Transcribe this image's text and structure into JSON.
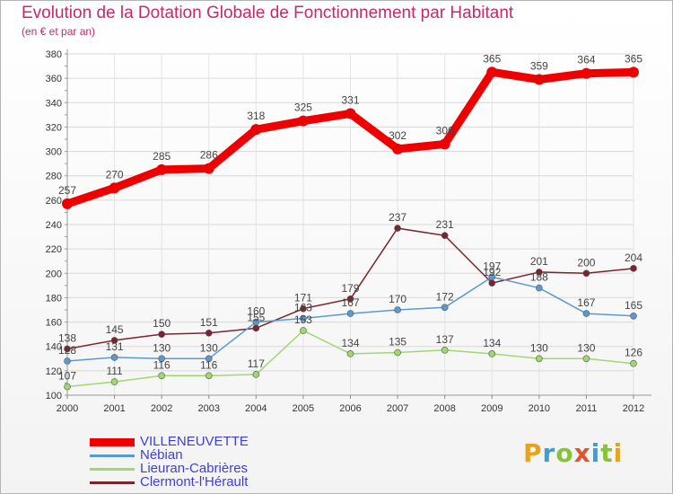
{
  "title": "Evolution de la Dotation Globale de Fonctionnement par Habitant",
  "subtitle": "(en € et par an)",
  "logo": {
    "letters": [
      "P",
      "r",
      "o",
      "x",
      "i",
      "t",
      "i"
    ],
    "colors": [
      "#e8a21c",
      "#3aa0d8",
      "#86c23a",
      "#e0542e",
      "#3aa0d8",
      "#86c23a",
      "#e8a21c"
    ]
  },
  "chart_data": {
    "type": "line",
    "title": "Evolution de la Dotation Globale de Fonctionnement par Habitant",
    "subtitle": "(en € et par an)",
    "xlabel": "",
    "ylabel": "",
    "x": [
      "2000",
      "2001",
      "2002",
      "2003",
      "2004",
      "2005",
      "2006",
      "2007",
      "2008",
      "2009",
      "2010",
      "2011",
      "2012"
    ],
    "ylim": [
      100,
      380
    ],
    "yticks": [
      100,
      120,
      140,
      160,
      180,
      200,
      220,
      240,
      260,
      280,
      300,
      320,
      340,
      360,
      380
    ],
    "grid": true,
    "legend_position": "bottom-left",
    "series": [
      {
        "name": "VILLENEUVETTE",
        "color": "#ee0000",
        "values": [
          257,
          270,
          285,
          286,
          318,
          325,
          331,
          302,
          306,
          365,
          359,
          364,
          365
        ],
        "labels": [
          "257",
          "270",
          "285",
          "286",
          "318",
          "325",
          "331",
          "302",
          "306",
          "365",
          "359",
          "364",
          "365"
        ]
      },
      {
        "name": "Nébian",
        "color": "#5a9ad0",
        "values": [
          128,
          131,
          130,
          130,
          160,
          163,
          167,
          170,
          172,
          197,
          188,
          167,
          165
        ],
        "labels": [
          "128",
          "131",
          "130",
          "130",
          "160",
          "163",
          "167",
          "170",
          "172",
          "197",
          "188",
          "167",
          "165"
        ]
      },
      {
        "name": "Lieuran-Cabrières",
        "color": "#9fd870",
        "values": [
          107,
          111,
          116,
          116,
          117,
          153,
          134,
          135,
          137,
          134,
          130,
          130,
          126
        ],
        "labels": [
          "107",
          "111",
          "116",
          "116",
          "117",
          "153",
          "134",
          "135",
          "137",
          "134",
          "130",
          "130",
          "126"
        ]
      },
      {
        "name": "Clermont-l'Hérault",
        "color": "#7b2430",
        "values": [
          138,
          145,
          150,
          151,
          155,
          171,
          179,
          237,
          231,
          192,
          201,
          200,
          204
        ],
        "labels": [
          "138",
          "145",
          "150",
          "151",
          "155",
          "171",
          "179",
          "237",
          "231",
          "192",
          "201",
          "200",
          "204"
        ]
      }
    ]
  }
}
